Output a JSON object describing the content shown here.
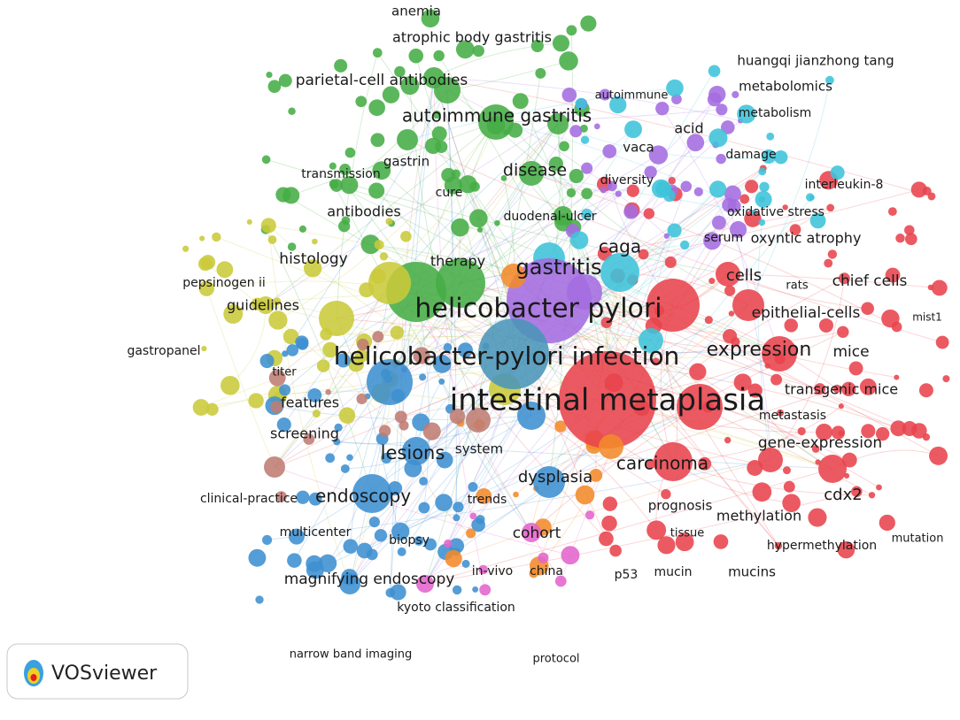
{
  "nodes": [
    {
      "label": "anemia"
    },
    {
      "label": "atrophic body gastritis"
    },
    {
      "label": "parietal-cell antibodies"
    },
    {
      "label": "autoimmune gastritis"
    },
    {
      "label": "transmission"
    },
    {
      "label": "gastrin"
    },
    {
      "label": "disease"
    },
    {
      "label": "cure"
    },
    {
      "label": "antibodies"
    },
    {
      "label": "duodenal-ulcer"
    },
    {
      "label": "histology"
    },
    {
      "label": "therapy"
    },
    {
      "label": "gastritis"
    },
    {
      "label": "caga"
    },
    {
      "label": "pepsinogen ii"
    },
    {
      "label": "guidelines"
    },
    {
      "label": "helicobacter pylori"
    },
    {
      "label": "helicobacter-pylori infection"
    },
    {
      "label": "gastropanel"
    },
    {
      "label": "titer"
    },
    {
      "label": "features"
    },
    {
      "label": "intestinal metaplasia"
    },
    {
      "label": "screening"
    },
    {
      "label": "lesions"
    },
    {
      "label": "system"
    },
    {
      "label": "dysplasia"
    },
    {
      "label": "carcinoma"
    },
    {
      "label": "endoscopy"
    },
    {
      "label": "clinical-practice"
    },
    {
      "label": "trends"
    },
    {
      "label": "prognosis"
    },
    {
      "label": "methylation"
    },
    {
      "label": "cdx2"
    },
    {
      "label": "multicenter"
    },
    {
      "label": "biopsy"
    },
    {
      "label": "cohort"
    },
    {
      "label": "tissue"
    },
    {
      "label": "hypermethylation"
    },
    {
      "label": "mutation"
    },
    {
      "label": "magnifying endoscopy"
    },
    {
      "label": "in-vivo"
    },
    {
      "label": "china"
    },
    {
      "label": "p53"
    },
    {
      "label": "mucin"
    },
    {
      "label": "mucins"
    },
    {
      "label": "kyoto classification"
    },
    {
      "label": "narrow band imaging"
    },
    {
      "label": "protocol"
    },
    {
      "label": "huangqi jianzhong tang"
    },
    {
      "label": "metabolomics"
    },
    {
      "label": "autoimmune"
    },
    {
      "label": "metabolism"
    },
    {
      "label": "acid"
    },
    {
      "label": "vaca"
    },
    {
      "label": "damage"
    },
    {
      "label": "diversity"
    },
    {
      "label": "interleukin-8"
    },
    {
      "label": "oxidative stress"
    },
    {
      "label": "serum"
    },
    {
      "label": "oxyntic atrophy"
    },
    {
      "label": "cells"
    },
    {
      "label": "rats"
    },
    {
      "label": "chief cells"
    },
    {
      "label": "epithelial-cells"
    },
    {
      "label": "mist1"
    },
    {
      "label": "expression"
    },
    {
      "label": "mice"
    },
    {
      "label": "transgenic mice"
    },
    {
      "label": "metastasis"
    },
    {
      "label": "gene-expression"
    }
  ],
  "logo": {
    "text": "VOSviewer"
  }
}
